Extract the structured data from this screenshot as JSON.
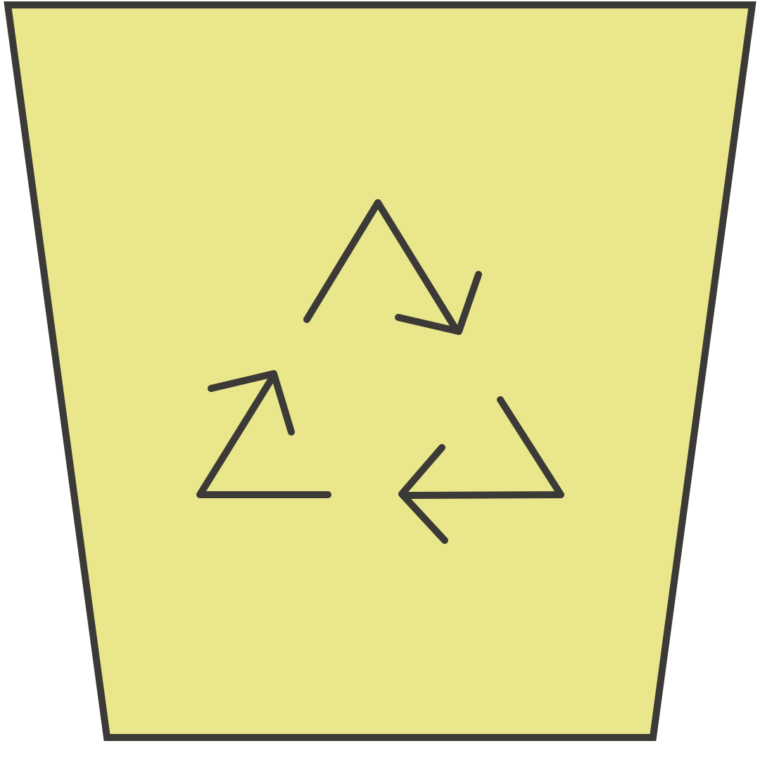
{
  "icon": {
    "name": "recycle-bin-icon",
    "symbol": "recycle-arrows-icon"
  },
  "colors": {
    "fill": "#E9E68B",
    "stroke": "#3B3A36",
    "background": "#FFFFFF"
  }
}
